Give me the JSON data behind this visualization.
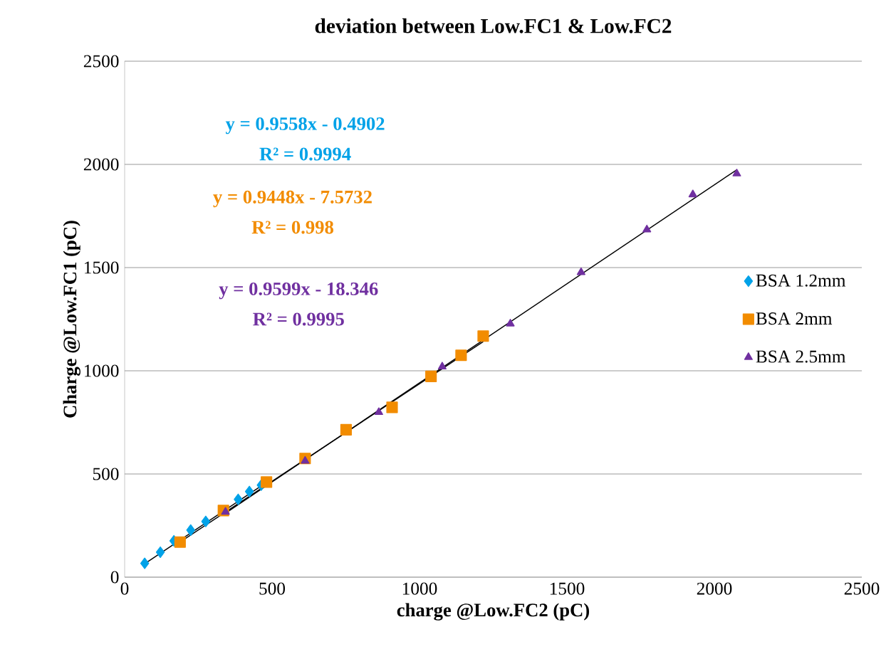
{
  "chart_data": {
    "type": "scatter",
    "title": "deviation between  Low.FC1 & Low.FC2",
    "xlabel": "charge @Low.FC2 (pC)",
    "ylabel": "Charge @Low.FC1 (pC)",
    "xlim": [
      0,
      2500
    ],
    "ylim": [
      0,
      2500
    ],
    "xticks": [
      0,
      500,
      1000,
      1500,
      2000,
      2500
    ],
    "yticks": [
      0,
      500,
      1000,
      1500,
      2000,
      2500
    ],
    "grid": "y",
    "legend": "right",
    "series": [
      {
        "name": "BSA 1.2mm",
        "color": "#00a2e8",
        "marker": "diamond",
        "x": [
          68,
          121,
          167,
          224,
          275,
          385,
          423,
          463
        ],
        "values": [
          67,
          121,
          176,
          228,
          270,
          377,
          415,
          446
        ]
      },
      {
        "name": "BSA 2mm",
        "color": "#f28c00",
        "marker": "square",
        "x": [
          188,
          335,
          481,
          612,
          751,
          907,
          1039,
          1141,
          1216
        ],
        "values": [
          170,
          323,
          461,
          575,
          714,
          823,
          973,
          1075,
          1168
        ]
      },
      {
        "name": "BSA 2.5mm",
        "color": "#7030a0",
        "marker": "triangle",
        "x": [
          342,
          612,
          862,
          1077,
          1308,
          1548,
          1771,
          1927,
          2076
        ],
        "values": [
          316,
          563,
          799,
          1020,
          1228,
          1477,
          1684,
          1854,
          1955
        ]
      },
      {
        "type": "line",
        "color": "#000000",
        "marker": "none",
        "x": [
          68,
          463
        ],
        "values": [
          65,
          442
        ]
      },
      {
        "type": "line",
        "color": "#000000",
        "marker": "none",
        "x": [
          188,
          1216
        ],
        "values": [
          170,
          1141
        ]
      },
      {
        "type": "line",
        "color": "#000000",
        "marker": "none",
        "x": [
          342,
          2076
        ],
        "values": [
          310,
          1974
        ]
      }
    ],
    "annotations": [
      "y = 0.9558x - 0.4902",
      "R² = 0.9994",
      "y = 0.9448x - 7.5732",
      "R² = 0.998",
      "y = 0.9599x - 18.346",
      "R² = 0.9995"
    ]
  }
}
